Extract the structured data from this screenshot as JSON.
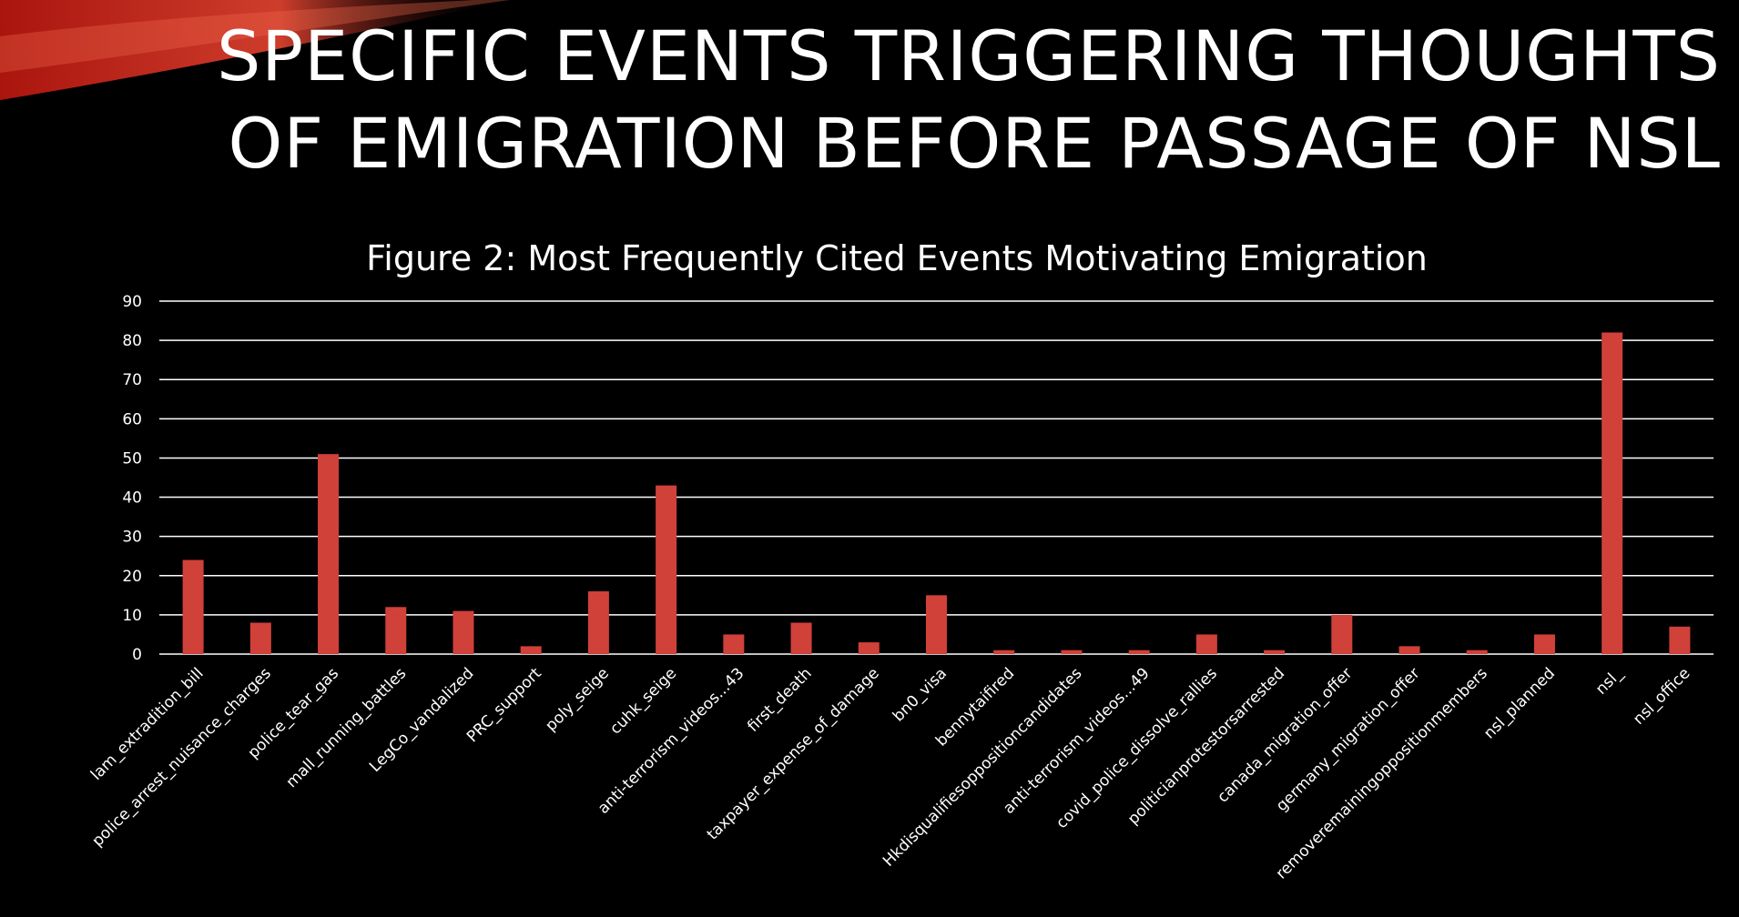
{
  "slide": {
    "title_line1": "SPECIFIC EVENTS TRIGGERING THOUGHTS",
    "title_line2": "OF EMIGRATION BEFORE PASSAGE OF NSL"
  },
  "colors": {
    "background": "#000000",
    "bar": "#d0413a",
    "grid": "#ffffff",
    "text": "#ffffff",
    "swoosh": "#c8261c"
  },
  "chart_data": {
    "type": "bar",
    "title": "Figure 2: Most Frequently Cited Events Motivating Emigration",
    "xlabel": "",
    "ylabel": "",
    "ylim": [
      0,
      90
    ],
    "yticks": [
      0,
      10,
      20,
      30,
      40,
      50,
      60,
      70,
      80,
      90
    ],
    "grid": true,
    "legend": "none",
    "categories": [
      "lam_extradition_bill",
      "police_arrest_nuisance_charges",
      "police_tear_gas",
      "mall_running_battles",
      "LegCo_vandalized",
      "PRC_support",
      "poly_seige",
      "cuhk_seige",
      "anti-terrorism_videos...43",
      "first_death",
      "taxpayer_expense_of_damage",
      "bn0_visa",
      "bennytaifired",
      "Hkdisqualifiesoppositioncandidates",
      "anti-terrorism_videos...49",
      "covid_police_dissolve_rallies",
      "politicianprotestorsarrested",
      "canada_migration_offer",
      "germany_migration_offer",
      "removeremainingoppositionmembers",
      "nsl_planned",
      "nsl_",
      "nsl_office"
    ],
    "values": [
      24,
      8,
      51,
      12,
      11,
      2,
      16,
      43,
      5,
      8,
      3,
      15,
      1,
      1,
      1,
      5,
      1,
      10,
      2,
      1,
      5,
      82,
      7
    ]
  }
}
